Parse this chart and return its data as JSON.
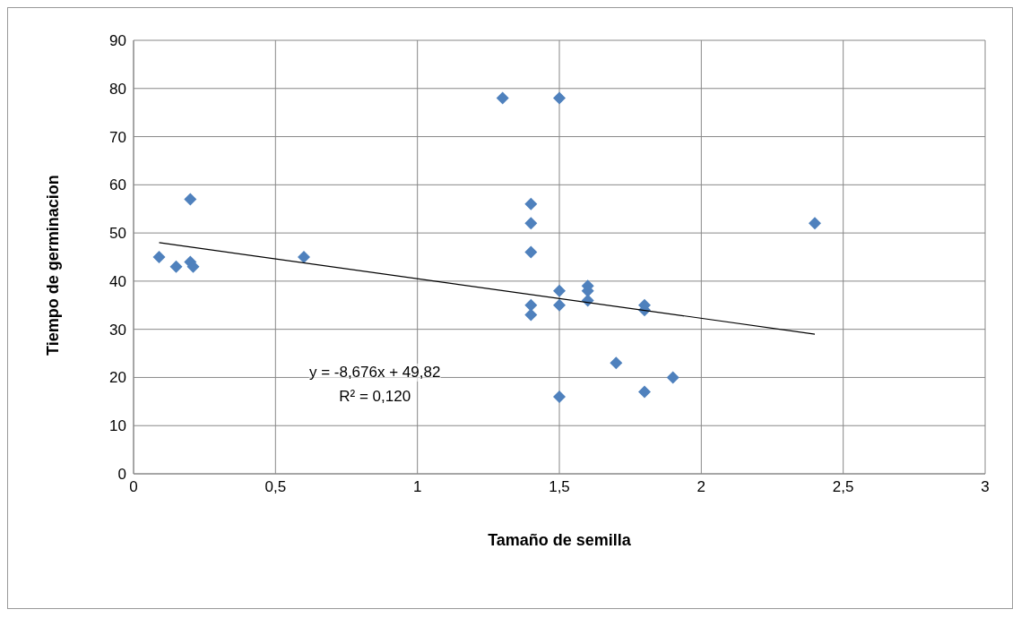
{
  "chart_data": {
    "type": "scatter",
    "xlabel": "Tamaño de semilla",
    "ylabel": "Tiempo de germinacion",
    "xlim": [
      0,
      3
    ],
    "xticks": [
      0,
      {
        "value": 0.5,
        "label": "0,5"
      },
      1,
      {
        "value": 1.5,
        "label": "1,5"
      },
      2,
      {
        "value": 2.5,
        "label": "2,5"
      },
      3
    ],
    "ylim": [
      0,
      90
    ],
    "yticks": [
      0,
      10,
      20,
      30,
      40,
      50,
      60,
      70,
      80,
      90
    ],
    "grid": true,
    "marker": "diamond",
    "annotations": [
      "y = -8,676x + 49,82",
      "R² = 0,120"
    ],
    "series": [
      {
        "color": "#4f81bd",
        "x": [
          0.09,
          0.15,
          0.2,
          0.2,
          0.21,
          0.6,
          1.3,
          1.5,
          1.4,
          1.4,
          1.4,
          1.4,
          1.4,
          1.5,
          1.5,
          1.5,
          1.6,
          1.6,
          1.6,
          1.7,
          1.8,
          1.8,
          1.8,
          1.9,
          2.4
        ],
        "values": [
          45,
          43,
          57,
          44,
          43,
          45,
          78,
          78,
          56,
          52,
          46,
          35,
          33,
          38,
          35,
          16,
          39,
          38,
          36,
          23,
          35,
          34,
          17,
          20,
          52
        ]
      },
      {
        "type": "line",
        "color": "#000000",
        "line_style": "solid",
        "marker": "none",
        "x": [
          0.09,
          2.4
        ],
        "values": [
          48,
          29
        ]
      }
    ]
  }
}
